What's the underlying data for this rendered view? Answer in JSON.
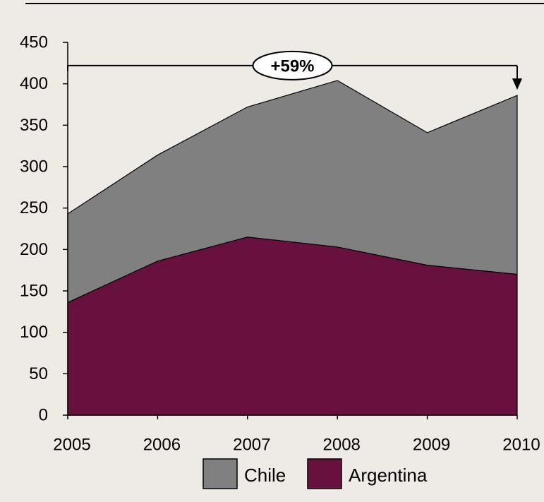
{
  "chart_data": {
    "type": "area",
    "stacked": true,
    "x": [
      "2005",
      "2006",
      "2007",
      "2008",
      "2009",
      "2010"
    ],
    "series": [
      {
        "name": "Argentina",
        "values": [
          136,
          186,
          215,
          203,
          181,
          170
        ],
        "color": "#68113e"
      },
      {
        "name": "Chile",
        "values": [
          107,
          128,
          157,
          201,
          160,
          216
        ],
        "color": "#808080"
      }
    ],
    "totals": [
      243,
      314,
      372,
      404,
      341,
      386
    ],
    "ylim": [
      0,
      450
    ],
    "yticks": [
      "0",
      "50",
      "100",
      "150",
      "200",
      "250",
      "300",
      "350",
      "400",
      "450"
    ],
    "grid": false,
    "legend": {
      "placement": "bottom",
      "order": [
        "Chile",
        "Argentina"
      ]
    },
    "annotation": {
      "label": "+59%",
      "from": "2005",
      "to": "2010",
      "level": 422
    },
    "colors": {
      "background": "#eeebe6",
      "border": "#000000"
    }
  }
}
